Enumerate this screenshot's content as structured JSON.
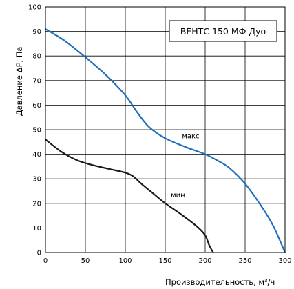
{
  "chart_data": {
    "type": "line",
    "title": "ВЕНТС 150 МФ Дуо",
    "xlabel": "Производительность, м³/ч",
    "ylabel": "Давление ΔP, Па",
    "xlim": [
      0,
      300
    ],
    "ylim": [
      0,
      100
    ],
    "xticks": [
      "0",
      "50",
      "100",
      "150",
      "200",
      "250",
      "300"
    ],
    "yticks": [
      "0",
      "10",
      "20",
      "30",
      "40",
      "50",
      "60",
      "70",
      "80",
      "90",
      "100"
    ],
    "grid": true,
    "series": [
      {
        "name": "макс",
        "color": "#1f6fb8",
        "x": [
          0,
          25,
          50,
          75,
          100,
          115,
          130,
          150,
          175,
          200,
          215,
          230,
          250,
          270,
          285,
          300
        ],
        "y": [
          91,
          86,
          79.5,
          72.5,
          64,
          57,
          51,
          46.5,
          43,
          40,
          37.5,
          34.5,
          28,
          19,
          11,
          0
        ]
      },
      {
        "name": "мин",
        "color": "#1a1a1a",
        "x": [
          0,
          20,
          40,
          60,
          80,
          100,
          110,
          120,
          135,
          150,
          170,
          190,
          200,
          205,
          210
        ],
        "y": [
          46,
          41,
          37.5,
          35.5,
          34,
          32.5,
          31,
          28,
          24,
          20,
          15.5,
          10.5,
          7,
          3,
          0
        ]
      }
    ]
  }
}
